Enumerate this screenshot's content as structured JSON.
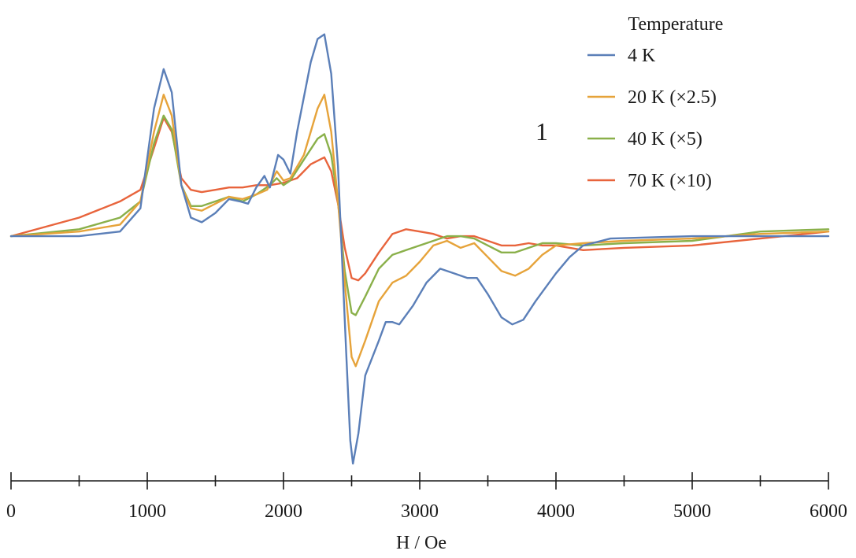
{
  "chart_data": {
    "type": "line",
    "xlabel": "H / Oe",
    "ylabel": "",
    "xlim": [
      0,
      6000
    ],
    "ylim": [
      -1.0,
      0.95
    ],
    "x_ticks": [
      "0",
      "1000",
      "2000",
      "3000",
      "4000",
      "5000",
      "6000"
    ],
    "x_minor_step": 500,
    "grid": false,
    "legend": {
      "title": "Temperature",
      "position": "top-right"
    },
    "annotation": "1",
    "series": [
      {
        "name": "4 K",
        "color": "#5b7fb8",
        "points": [
          [
            0,
            0
          ],
          [
            500,
            0
          ],
          [
            800,
            0.02
          ],
          [
            950,
            0.12
          ],
          [
            1050,
            0.55
          ],
          [
            1120,
            0.72
          ],
          [
            1180,
            0.62
          ],
          [
            1250,
            0.22
          ],
          [
            1320,
            0.08
          ],
          [
            1400,
            0.06
          ],
          [
            1500,
            0.1
          ],
          [
            1600,
            0.16
          ],
          [
            1680,
            0.15
          ],
          [
            1740,
            0.14
          ],
          [
            1800,
            0.21
          ],
          [
            1860,
            0.26
          ],
          [
            1900,
            0.21
          ],
          [
            1960,
            0.35
          ],
          [
            2000,
            0.33
          ],
          [
            2050,
            0.27
          ],
          [
            2100,
            0.45
          ],
          [
            2200,
            0.75
          ],
          [
            2250,
            0.85
          ],
          [
            2300,
            0.87
          ],
          [
            2350,
            0.7
          ],
          [
            2400,
            0.3
          ],
          [
            2430,
            -0.1
          ],
          [
            2460,
            -0.5
          ],
          [
            2490,
            -0.88
          ],
          [
            2510,
            -0.98
          ],
          [
            2550,
            -0.85
          ],
          [
            2600,
            -0.6
          ],
          [
            2700,
            -0.45
          ],
          [
            2750,
            -0.37
          ],
          [
            2800,
            -0.37
          ],
          [
            2850,
            -0.38
          ],
          [
            2950,
            -0.3
          ],
          [
            3050,
            -0.2
          ],
          [
            3150,
            -0.14
          ],
          [
            3250,
            -0.16
          ],
          [
            3350,
            -0.18
          ],
          [
            3420,
            -0.18
          ],
          [
            3500,
            -0.25
          ],
          [
            3600,
            -0.35
          ],
          [
            3680,
            -0.38
          ],
          [
            3760,
            -0.36
          ],
          [
            3850,
            -0.28
          ],
          [
            3900,
            -0.24
          ],
          [
            4000,
            -0.16
          ],
          [
            4100,
            -0.09
          ],
          [
            4200,
            -0.04
          ],
          [
            4400,
            -0.01
          ],
          [
            5000,
            0
          ],
          [
            5500,
            0
          ],
          [
            6000,
            0
          ]
        ]
      },
      {
        "name": "20 K (×2.5)",
        "color": "#e6a33a",
        "points": [
          [
            0,
            0
          ],
          [
            500,
            0.02
          ],
          [
            800,
            0.05
          ],
          [
            950,
            0.15
          ],
          [
            1050,
            0.45
          ],
          [
            1120,
            0.61
          ],
          [
            1180,
            0.52
          ],
          [
            1250,
            0.22
          ],
          [
            1320,
            0.12
          ],
          [
            1400,
            0.11
          ],
          [
            1500,
            0.14
          ],
          [
            1600,
            0.17
          ],
          [
            1700,
            0.16
          ],
          [
            1800,
            0.18
          ],
          [
            1880,
            0.2
          ],
          [
            1950,
            0.28
          ],
          [
            2000,
            0.24
          ],
          [
            2050,
            0.25
          ],
          [
            2150,
            0.35
          ],
          [
            2250,
            0.55
          ],
          [
            2300,
            0.61
          ],
          [
            2350,
            0.45
          ],
          [
            2400,
            0.15
          ],
          [
            2450,
            -0.2
          ],
          [
            2500,
            -0.52
          ],
          [
            2530,
            -0.56
          ],
          [
            2600,
            -0.45
          ],
          [
            2700,
            -0.28
          ],
          [
            2800,
            -0.2
          ],
          [
            2900,
            -0.17
          ],
          [
            3000,
            -0.11
          ],
          [
            3100,
            -0.04
          ],
          [
            3200,
            -0.02
          ],
          [
            3300,
            -0.05
          ],
          [
            3400,
            -0.03
          ],
          [
            3500,
            -0.09
          ],
          [
            3600,
            -0.15
          ],
          [
            3700,
            -0.17
          ],
          [
            3800,
            -0.14
          ],
          [
            3900,
            -0.08
          ],
          [
            4000,
            -0.04
          ],
          [
            4200,
            -0.03
          ],
          [
            4500,
            -0.02
          ],
          [
            5000,
            -0.01
          ],
          [
            5500,
            0.01
          ],
          [
            6000,
            0.02
          ]
        ]
      },
      {
        "name": "40 K (×5)",
        "color": "#8ab04a",
        "points": [
          [
            0,
            0
          ],
          [
            500,
            0.03
          ],
          [
            800,
            0.08
          ],
          [
            950,
            0.15
          ],
          [
            1050,
            0.4
          ],
          [
            1120,
            0.52
          ],
          [
            1180,
            0.46
          ],
          [
            1250,
            0.22
          ],
          [
            1320,
            0.13
          ],
          [
            1400,
            0.13
          ],
          [
            1500,
            0.15
          ],
          [
            1600,
            0.17
          ],
          [
            1700,
            0.15
          ],
          [
            1800,
            0.18
          ],
          [
            1900,
            0.22
          ],
          [
            1950,
            0.25
          ],
          [
            2000,
            0.22
          ],
          [
            2050,
            0.24
          ],
          [
            2150,
            0.33
          ],
          [
            2250,
            0.42
          ],
          [
            2300,
            0.44
          ],
          [
            2350,
            0.35
          ],
          [
            2400,
            0.15
          ],
          [
            2450,
            -0.15
          ],
          [
            2500,
            -0.33
          ],
          [
            2530,
            -0.34
          ],
          [
            2600,
            -0.26
          ],
          [
            2700,
            -0.14
          ],
          [
            2800,
            -0.08
          ],
          [
            2900,
            -0.06
          ],
          [
            3000,
            -0.04
          ],
          [
            3100,
            -0.02
          ],
          [
            3200,
            0
          ],
          [
            3300,
            0
          ],
          [
            3400,
            -0.01
          ],
          [
            3500,
            -0.04
          ],
          [
            3600,
            -0.07
          ],
          [
            3700,
            -0.07
          ],
          [
            3800,
            -0.05
          ],
          [
            3900,
            -0.03
          ],
          [
            4000,
            -0.03
          ],
          [
            4200,
            -0.04
          ],
          [
            4500,
            -0.03
          ],
          [
            5000,
            -0.02
          ],
          [
            5500,
            0.02
          ],
          [
            6000,
            0.03
          ]
        ]
      },
      {
        "name": "70 K (×10)",
        "color": "#e8643c",
        "points": [
          [
            0,
            0
          ],
          [
            500,
            0.08
          ],
          [
            800,
            0.15
          ],
          [
            950,
            0.2
          ],
          [
            1050,
            0.38
          ],
          [
            1120,
            0.51
          ],
          [
            1180,
            0.45
          ],
          [
            1250,
            0.25
          ],
          [
            1320,
            0.2
          ],
          [
            1400,
            0.19
          ],
          [
            1500,
            0.2
          ],
          [
            1600,
            0.21
          ],
          [
            1700,
            0.21
          ],
          [
            1800,
            0.22
          ],
          [
            1900,
            0.22
          ],
          [
            2000,
            0.23
          ],
          [
            2100,
            0.25
          ],
          [
            2200,
            0.31
          ],
          [
            2300,
            0.34
          ],
          [
            2350,
            0.28
          ],
          [
            2400,
            0.14
          ],
          [
            2450,
            -0.05
          ],
          [
            2500,
            -0.18
          ],
          [
            2550,
            -0.19
          ],
          [
            2600,
            -0.16
          ],
          [
            2700,
            -0.07
          ],
          [
            2800,
            0.01
          ],
          [
            2900,
            0.03
          ],
          [
            3000,
            0.02
          ],
          [
            3100,
            0.01
          ],
          [
            3200,
            -0.01
          ],
          [
            3300,
            0
          ],
          [
            3400,
            0
          ],
          [
            3500,
            -0.02
          ],
          [
            3600,
            -0.04
          ],
          [
            3700,
            -0.04
          ],
          [
            3800,
            -0.03
          ],
          [
            3900,
            -0.04
          ],
          [
            4000,
            -0.04
          ],
          [
            4200,
            -0.06
          ],
          [
            4500,
            -0.05
          ],
          [
            5000,
            -0.04
          ],
          [
            5500,
            -0.01
          ],
          [
            6000,
            0.02
          ]
        ]
      }
    ]
  }
}
